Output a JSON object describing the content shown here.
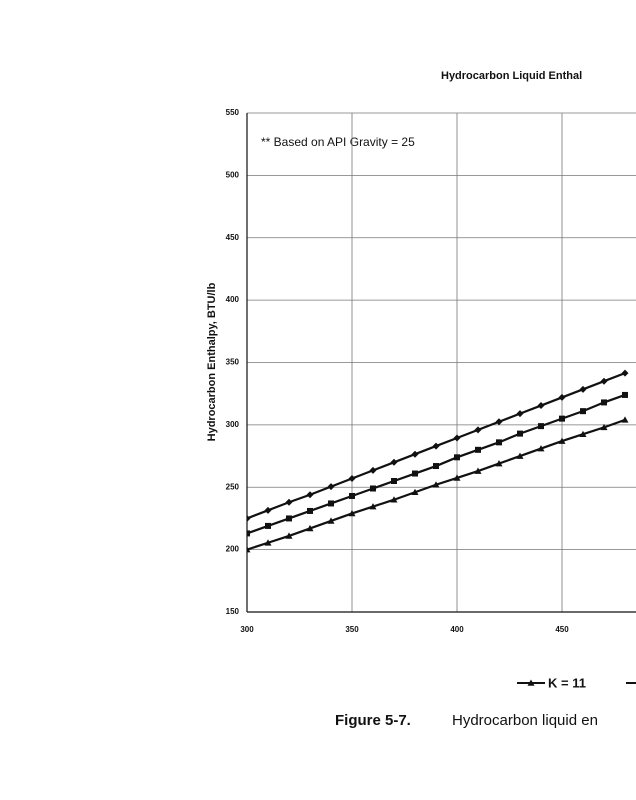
{
  "chart_data": {
    "type": "line",
    "title": "Hydrocarbon Liquid Enthal",
    "annotation": "** Based on API Gravity = 25",
    "y_label": "Hydrocarbon Enthalpy, BTU/lb",
    "x": [
      300,
      310,
      320,
      330,
      340,
      350,
      360,
      370,
      380,
      390,
      400,
      410,
      420,
      430,
      440,
      450,
      460,
      470,
      480
    ],
    "series": [
      {
        "name": "K = 11",
        "marker": "triangle",
        "color": "#111111",
        "values": [
          200,
          205.5,
          211,
          217,
          223,
          229,
          234.5,
          240,
          246,
          252,
          257.5,
          263,
          269,
          275,
          281,
          287,
          292.5,
          298,
          304
        ]
      },
      {
        "marker": "square",
        "color": "#111111",
        "values": [
          213,
          219,
          225,
          231,
          237,
          243,
          249,
          255,
          261,
          267,
          274,
          280,
          286,
          293,
          299,
          305,
          311,
          318,
          324
        ]
      },
      {
        "marker": "diamond",
        "color": "#111111",
        "values": [
          225,
          231.5,
          238,
          244,
          250.5,
          257,
          263.5,
          270,
          276.5,
          283,
          289.5,
          296,
          302.5,
          309,
          315.5,
          322,
          328.5,
          335,
          341.5
        ]
      }
    ],
    "xlim": [
      300,
      485
    ],
    "xticks": [
      300,
      350,
      400,
      450
    ],
    "ylim": [
      150,
      550
    ],
    "yticks": [
      150,
      200,
      250,
      300,
      350,
      400,
      450,
      500,
      550
    ],
    "grid": true
  },
  "caption": {
    "label": "Figure 5-7.",
    "text": "Hydrocarbon liquid en"
  }
}
